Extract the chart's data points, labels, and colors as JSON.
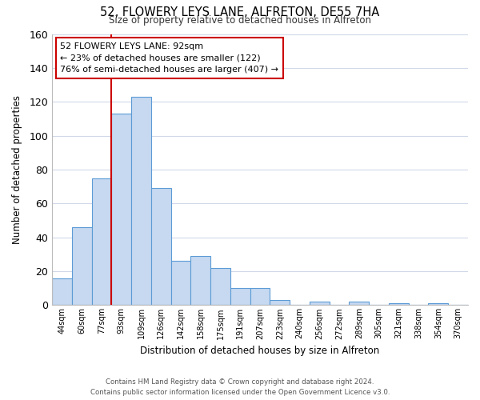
{
  "title": "52, FLOWERY LEYS LANE, ALFRETON, DE55 7HA",
  "subtitle": "Size of property relative to detached houses in Alfreton",
  "xlabel": "Distribution of detached houses by size in Alfreton",
  "ylabel": "Number of detached properties",
  "bin_labels": [
    "44sqm",
    "60sqm",
    "77sqm",
    "93sqm",
    "109sqm",
    "126sqm",
    "142sqm",
    "158sqm",
    "175sqm",
    "191sqm",
    "207sqm",
    "223sqm",
    "240sqm",
    "256sqm",
    "272sqm",
    "289sqm",
    "305sqm",
    "321sqm",
    "338sqm",
    "354sqm",
    "370sqm"
  ],
  "bar_values": [
    16,
    46,
    75,
    113,
    123,
    69,
    26,
    29,
    22,
    10,
    10,
    3,
    0,
    2,
    0,
    2,
    0,
    1,
    0,
    1,
    0
  ],
  "bar_color": "#c6d9f0",
  "bar_edge_color": "#5b9bd5",
  "vline_x": 3.0,
  "vline_color": "#cc0000",
  "ylim": [
    0,
    160
  ],
  "yticks": [
    0,
    20,
    40,
    60,
    80,
    100,
    120,
    140,
    160
  ],
  "annotation_title": "52 FLOWERY LEYS LANE: 92sqm",
  "annotation_line1": "← 23% of detached houses are smaller (122)",
  "annotation_line2": "76% of semi-detached houses are larger (407) →",
  "footer_line1": "Contains HM Land Registry data © Crown copyright and database right 2024.",
  "footer_line2": "Contains public sector information licensed under the Open Government Licence v3.0.",
  "background_color": "#ffffff",
  "grid_color": "#d0d8e8"
}
